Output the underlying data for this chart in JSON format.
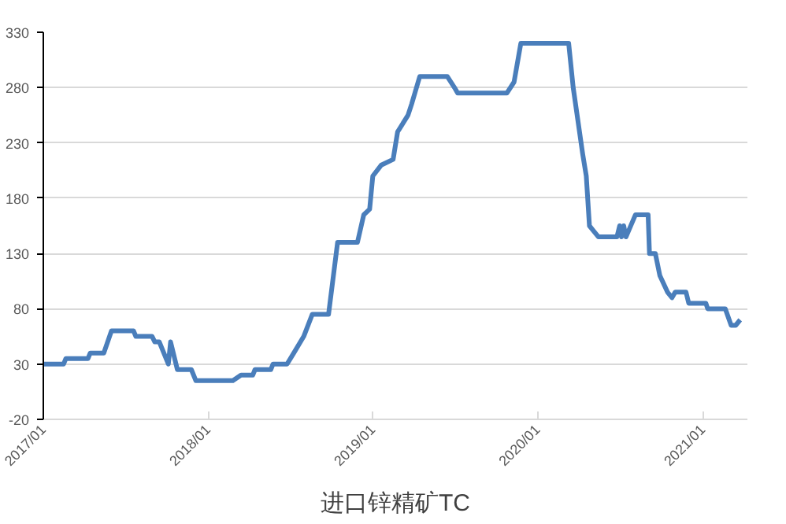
{
  "chart_data": {
    "type": "line",
    "title": "进口锌精矿TC",
    "x": [
      "2017-01-01",
      "2017-02-15",
      "2017-02-20",
      "2017-04-10",
      "2017-04-15",
      "2017-05-15",
      "2017-06-01",
      "2017-07-20",
      "2017-07-25",
      "2017-08-30",
      "2017-09-05",
      "2017-09-15",
      "2017-10-05",
      "2017-10-10",
      "2017-10-25",
      "2017-11-25",
      "2017-12-05",
      "2018-02-25",
      "2018-03-15",
      "2018-04-10",
      "2018-04-15",
      "2018-05-20",
      "2018-05-25",
      "2018-06-25",
      "2018-07-10",
      "2018-08-01",
      "2018-08-20",
      "2018-09-25",
      "2018-10-15",
      "2018-11-28",
      "2018-12-12",
      "2018-12-25",
      "2019-01-01",
      "2019-01-20",
      "2019-02-15",
      "2019-02-25",
      "2019-03-20",
      "2019-03-28",
      "2019-04-15",
      "2019-06-15",
      "2019-07-01",
      "2019-07-08",
      "2019-10-25",
      "2019-11-10",
      "2019-11-25",
      "2020-03-10",
      "2020-03-20",
      "2020-04-10",
      "2020-04-18",
      "2020-04-25",
      "2020-05-05",
      "2020-05-15",
      "2020-06-25",
      "2020-07-01",
      "2020-07-05",
      "2020-07-10",
      "2020-07-15",
      "2020-08-05",
      "2020-09-02",
      "2020-09-05",
      "2020-09-18",
      "2020-09-28",
      "2020-10-15",
      "2020-10-25",
      "2020-11-01",
      "2020-11-25",
      "2020-12-01",
      "2021-01-08",
      "2021-01-12",
      "2021-02-20",
      "2021-03-05",
      "2021-03-15",
      "2021-03-25"
    ],
    "series": [
      {
        "color": "#4a7ebb",
        "values": [
          30,
          30,
          35,
          35,
          40,
          40,
          60,
          60,
          55,
          55,
          50,
          50,
          30,
          50,
          25,
          25,
          15,
          15,
          20,
          20,
          25,
          25,
          30,
          30,
          40,
          55,
          75,
          75,
          140,
          140,
          165,
          170,
          200,
          210,
          215,
          240,
          255,
          265,
          290,
          290,
          280,
          275,
          275,
          285,
          320,
          320,
          280,
          220,
          200,
          155,
          150,
          145,
          145,
          155,
          145,
          155,
          145,
          165,
          165,
          130,
          130,
          110,
          95,
          90,
          95,
          95,
          85,
          85,
          80,
          80,
          65,
          65,
          70
        ]
      }
    ],
    "xlim": [
      "2017-01-01",
      "2021-04-10"
    ],
    "xticks": [
      {
        "value": "2017-01-01",
        "label": "2017/01"
      },
      {
        "value": "2018-01-01",
        "label": "2018/01"
      },
      {
        "value": "2019-01-01",
        "label": "2019/01"
      },
      {
        "value": "2020-01-01",
        "label": "2020/01"
      },
      {
        "value": "2021-01-01",
        "label": "2021/01"
      }
    ],
    "ylim": [
      -20,
      330
    ],
    "yticks": [
      -20,
      30,
      80,
      130,
      180,
      230,
      280,
      330
    ],
    "grid": "y",
    "marker": "none",
    "line_style": "solid"
  }
}
